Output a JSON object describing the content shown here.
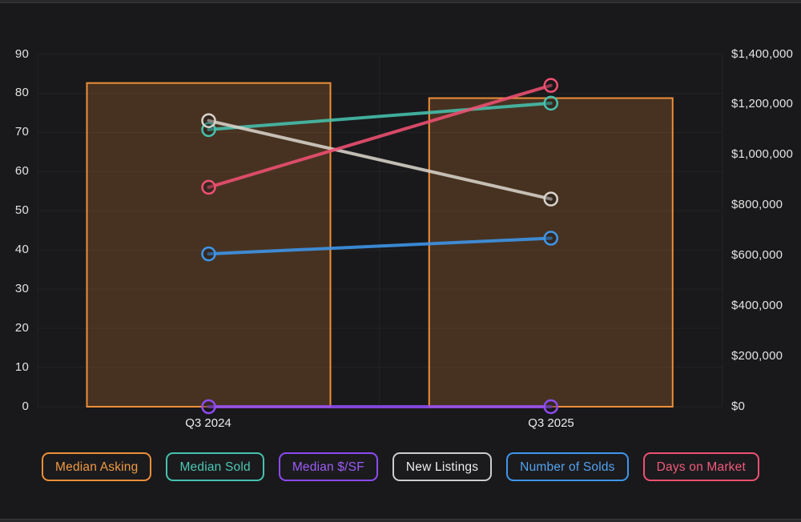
{
  "page": {
    "background": "#19191B",
    "plot_background": "#19191B",
    "gridline_color": "rgba(255,255,255,0.045)"
  },
  "chart_data": {
    "type": "combo-bar-line-dual-axis",
    "title": "",
    "categories": [
      "Q3 2024",
      "Q3 2025"
    ],
    "left_axis": {
      "min": 0,
      "max": 90,
      "tick_step": 10,
      "ticks": [
        0,
        10,
        20,
        30,
        40,
        50,
        60,
        70,
        80,
        90
      ],
      "format": "number"
    },
    "right_axis": {
      "min": 0,
      "max": 1400000,
      "tick_step": 200000,
      "ticks": [
        0,
        200000,
        400000,
        600000,
        800000,
        1000000,
        1200000,
        1400000
      ],
      "format": "currency-usd"
    },
    "grid": true,
    "legend_position": "bottom",
    "series": [
      {
        "id": "median-asking",
        "label": "Median Asking",
        "type": "bar",
        "axis": "right",
        "color": "#EE8F38",
        "fill": "rgba(238,143,56,0.22)",
        "values": [
          1285000,
          1225000
        ]
      },
      {
        "id": "median-sold",
        "label": "Median Sold",
        "type": "line",
        "axis": "right",
        "color": "#46C2AE",
        "values": [
          1100000,
          1205000
        ]
      },
      {
        "id": "median-dollar-per-sf",
        "label": "Median $/SF",
        "type": "line",
        "axis": "right",
        "color": "#8F4BF2",
        "values": [
          0,
          0
        ]
      },
      {
        "id": "new-listings",
        "label": "New Listings",
        "type": "line",
        "axis": "left",
        "color": "#D8D3CA",
        "values": [
          73,
          53
        ]
      },
      {
        "id": "number-of-solds",
        "label": "Number of Solds",
        "type": "line",
        "axis": "left",
        "color": "#3E96EC",
        "values": [
          39,
          43
        ]
      },
      {
        "id": "days-on-market",
        "label": "Days on Market",
        "type": "line",
        "axis": "left",
        "color": "#EF5072",
        "values": [
          56,
          82
        ]
      }
    ]
  },
  "legend": {
    "items": [
      {
        "label": "Median Asking",
        "color": "#EE8F38",
        "text_color": "#F09A42"
      },
      {
        "label": "Median Sold",
        "color": "#46C2AE",
        "text_color": "#4CC7B2"
      },
      {
        "label": "Median $/SF",
        "color": "#8C4BF2",
        "text_color": "#9D5CF7"
      },
      {
        "label": "New Listings",
        "color": "#CDCDCD",
        "text_color": "#EDEDED"
      },
      {
        "label": "Number of Solds",
        "color": "#3E96EC",
        "text_color": "#54A2F0"
      },
      {
        "label": "Days on Market",
        "color": "#EF5072",
        "text_color": "#F25A7B"
      }
    ]
  }
}
